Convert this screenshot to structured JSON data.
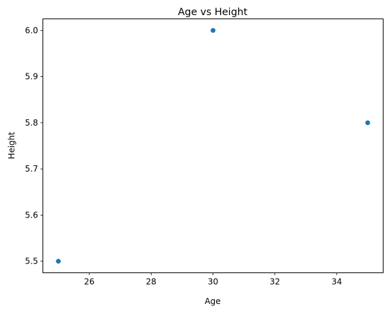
{
  "chart_data": {
    "type": "scatter",
    "title": "Age vs Height",
    "xlabel": "Age",
    "ylabel": "Height",
    "xlim": [
      24.5,
      35.5
    ],
    "ylim": [
      5.475,
      6.025
    ],
    "xticks": [
      26,
      28,
      30,
      32,
      34
    ],
    "yticks": [
      5.5,
      5.6,
      5.7,
      5.8,
      5.9,
      6.0
    ],
    "xtick_labels": [
      "26",
      "28",
      "30",
      "32",
      "34"
    ],
    "ytick_labels": [
      "5.5",
      "5.6",
      "5.7",
      "5.8",
      "5.9",
      "6.0"
    ],
    "grid": false,
    "legend": "none",
    "point_color": "#1f77b4",
    "series": [
      {
        "x": [
          25,
          30,
          35
        ],
        "y": [
          5.5,
          6.0,
          5.8
        ]
      }
    ]
  }
}
